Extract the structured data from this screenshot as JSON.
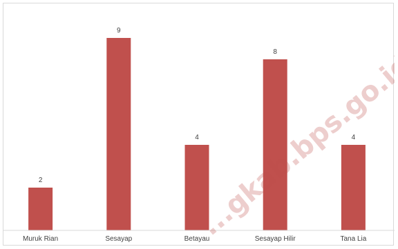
{
  "watermark": "...gkab.bps.go.id",
  "chart_data": {
    "type": "bar",
    "categories": [
      "Muruk Rian",
      "Sesayap",
      "Betayau",
      "Sesayap Hilir",
      "Tana Lia"
    ],
    "values": [
      2,
      9,
      4,
      8,
      4
    ],
    "data_labels": [
      "2",
      "9",
      "4",
      "8",
      "4"
    ],
    "title": "",
    "xlabel": "",
    "ylabel": "",
    "ylim": [
      0,
      10
    ],
    "grid": false,
    "legend": "none",
    "bar_color": "#c0504d"
  }
}
